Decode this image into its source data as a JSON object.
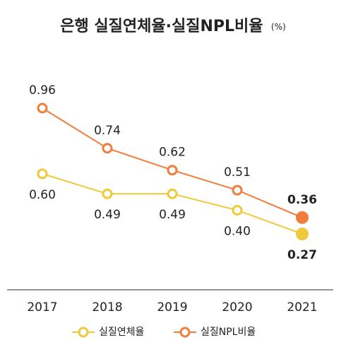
{
  "chart_data": {
    "type": "line",
    "title": "은행 실질연체율·실질NPL비율",
    "subtitle": "(%)",
    "categories": [
      "2017",
      "2018",
      "2019",
      "2020",
      "2021"
    ],
    "series": [
      {
        "name": "실질연체율",
        "color": "#f0c83c",
        "values": [
          0.6,
          0.49,
          0.49,
          0.4,
          0.27
        ],
        "value_labels": [
          "0.60",
          "0.49",
          "0.49",
          "0.40",
          "0.27"
        ]
      },
      {
        "name": "실질NPL비율",
        "color": "#f07d3c",
        "values": [
          0.96,
          0.74,
          0.62,
          0.51,
          0.36
        ],
        "value_labels": [
          "0.96",
          "0.74",
          "0.62",
          "0.51",
          "0.36"
        ]
      }
    ]
  }
}
